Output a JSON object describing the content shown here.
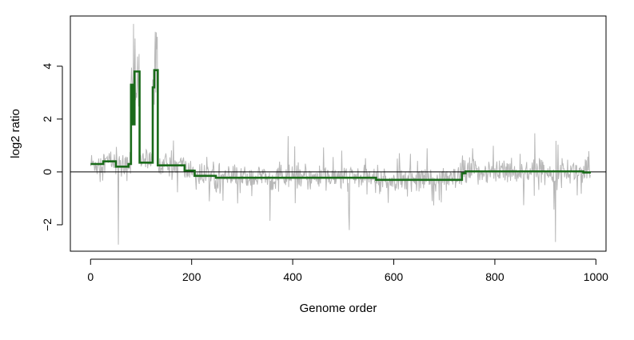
{
  "chart_data": {
    "type": "line",
    "title": "",
    "xlabel": "Genome order",
    "ylabel": "log2 ratio",
    "xlim": [
      -40,
      1020
    ],
    "ylim": [
      -3.0,
      5.9
    ],
    "x_ticks": [
      0,
      200,
      400,
      600,
      800,
      1000
    ],
    "x_tick_labels": [
      "0",
      "200",
      "400",
      "600",
      "800",
      "1000"
    ],
    "y_ticks": [
      -2,
      0,
      2,
      4
    ],
    "y_tick_labels": [
      "−2",
      "0",
      "2",
      "4"
    ],
    "reference_line": 0,
    "grid": false,
    "legend": "none",
    "colors": {
      "raw": "#b8b8b8",
      "segments": "#1a6b1a",
      "reference": "#000000"
    },
    "series": [
      {
        "type": "segments",
        "points": [
          [
            0,
            0.3
          ],
          [
            25,
            0.3
          ],
          [
            25,
            0.4
          ],
          [
            50,
            0.4
          ],
          [
            50,
            0.2
          ],
          [
            75,
            0.2
          ],
          [
            75,
            0.3
          ],
          [
            80,
            0.3
          ],
          [
            80,
            3.3
          ],
          [
            84,
            3.3
          ],
          [
            84,
            1.8
          ],
          [
            87,
            1.8
          ],
          [
            87,
            3.8
          ],
          [
            97,
            3.8
          ],
          [
            97,
            0.35
          ],
          [
            123,
            0.35
          ],
          [
            123,
            3.2
          ],
          [
            126,
            3.2
          ],
          [
            126,
            3.85
          ],
          [
            133,
            3.85
          ],
          [
            133,
            0.25
          ],
          [
            186,
            0.25
          ],
          [
            186,
            0.05
          ],
          [
            206,
            0.05
          ],
          [
            206,
            -0.15
          ],
          [
            248,
            -0.15
          ],
          [
            248,
            -0.22
          ],
          [
            565,
            -0.22
          ],
          [
            565,
            -0.3
          ],
          [
            735,
            -0.3
          ],
          [
            735,
            -0.05
          ],
          [
            742,
            -0.05
          ],
          [
            742,
            0.02
          ],
          [
            975,
            0.02
          ],
          [
            975,
            -0.02
          ],
          [
            990,
            -0.02
          ]
        ]
      }
    ],
    "raw_observations": {
      "count": 990,
      "x_start": 0,
      "x_step": 1,
      "spikes": [
        {
          "x": 55,
          "y": -2.75
        },
        {
          "x": 85,
          "y": 5.6
        },
        {
          "x": 128,
          "y": 5.3
        },
        {
          "x": 355,
          "y": -1.85
        },
        {
          "x": 512,
          "y": -2.2
        },
        {
          "x": 920,
          "y": -2.65
        }
      ]
    }
  }
}
